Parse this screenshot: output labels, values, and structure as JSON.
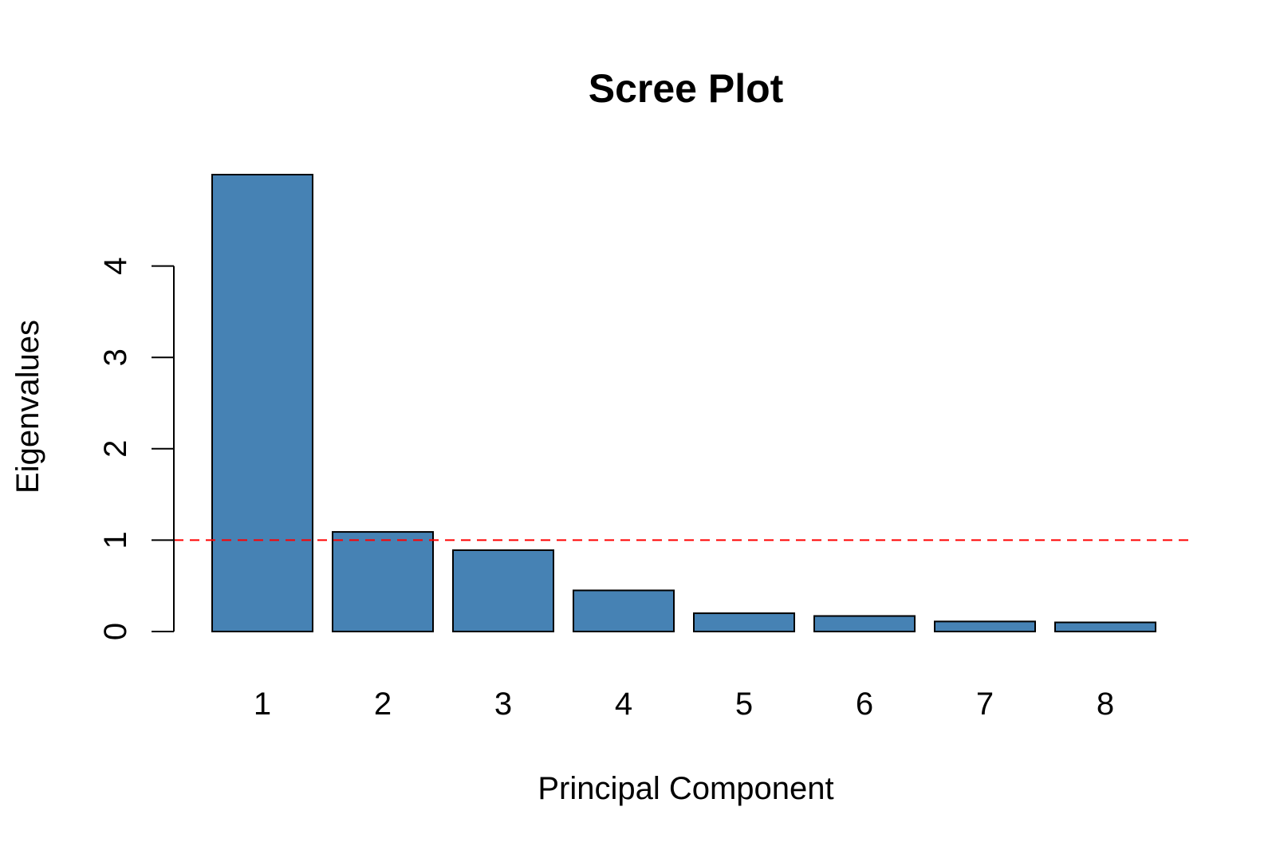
{
  "chart_data": {
    "type": "bar",
    "title": "Scree Plot",
    "xlabel": "Principal Component",
    "ylabel": "Eigenvalues",
    "categories": [
      "1",
      "2",
      "3",
      "4",
      "5",
      "6",
      "7",
      "8"
    ],
    "values": [
      5.0,
      1.09,
      0.89,
      0.45,
      0.2,
      0.17,
      0.11,
      0.1
    ],
    "ylim": [
      0,
      5
    ],
    "yticks": [
      0,
      1,
      2,
      3,
      4
    ],
    "yticks_labels": [
      "0",
      "1",
      "2",
      "3",
      "4"
    ],
    "reference_line": {
      "y": 1,
      "style": "dashed",
      "color": "#ff0000"
    },
    "bar_color": "#4682b4",
    "bar_edge_color": "#000000",
    "grid": false,
    "legend": "none"
  }
}
